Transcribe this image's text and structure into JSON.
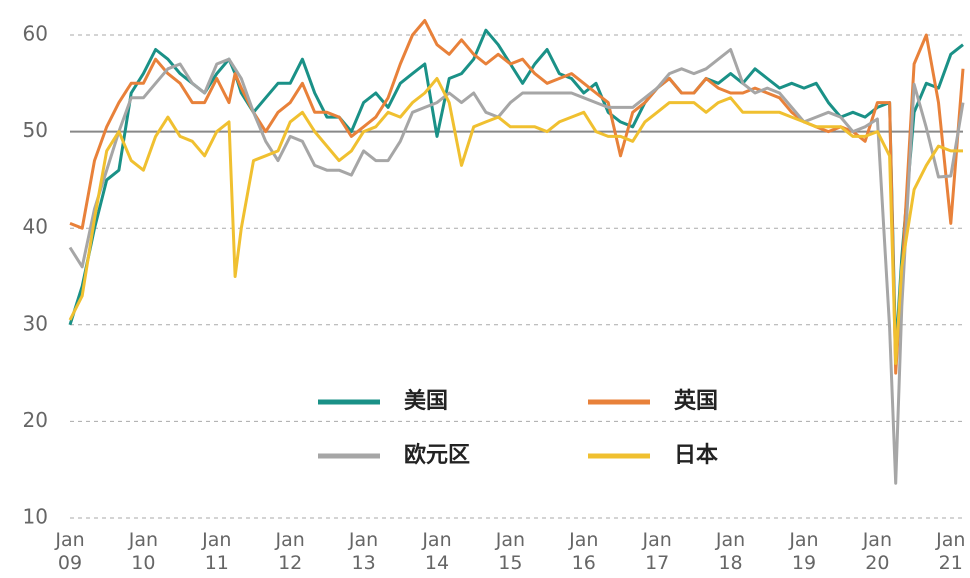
{
  "chart_data": {
    "type": "line",
    "x": [
      "2009-01",
      "2009-03",
      "2009-05",
      "2009-07",
      "2009-09",
      "2009-11",
      "2010-01",
      "2010-03",
      "2010-05",
      "2010-07",
      "2010-09",
      "2010-11",
      "2011-01",
      "2011-03",
      "2011-04",
      "2011-05",
      "2011-07",
      "2011-09",
      "2011-11",
      "2012-01",
      "2012-03",
      "2012-05",
      "2012-07",
      "2012-09",
      "2012-11",
      "2013-01",
      "2013-03",
      "2013-05",
      "2013-07",
      "2013-09",
      "2013-11",
      "2014-01",
      "2014-03",
      "2014-05",
      "2014-07",
      "2014-09",
      "2014-11",
      "2015-01",
      "2015-03",
      "2015-05",
      "2015-07",
      "2015-09",
      "2015-11",
      "2016-01",
      "2016-03",
      "2016-05",
      "2016-07",
      "2016-09",
      "2016-11",
      "2017-01",
      "2017-03",
      "2017-05",
      "2017-07",
      "2017-09",
      "2017-11",
      "2018-01",
      "2018-03",
      "2018-05",
      "2018-07",
      "2018-09",
      "2018-11",
      "2019-01",
      "2019-03",
      "2019-05",
      "2019-07",
      "2019-09",
      "2019-11",
      "2020-01",
      "2020-03",
      "2020-04",
      "2020-05",
      "2020-07",
      "2020-09",
      "2020-11",
      "2021-01",
      "2021-03"
    ],
    "series": [
      {
        "name": "美国",
        "color": "#1a9187",
        "values": [
          30,
          34,
          40,
          45,
          46,
          54,
          56,
          58.5,
          57.5,
          56,
          55,
          54,
          56,
          57.5,
          56,
          54,
          52,
          53.5,
          55,
          55,
          57.5,
          54,
          51.5,
          51.5,
          50,
          53,
          54,
          52.5,
          55,
          56,
          57,
          49.5,
          55.5,
          56,
          57.5,
          60.5,
          59,
          57,
          55,
          57,
          58.5,
          56,
          55.5,
          54,
          55,
          52,
          51,
          50.5,
          53,
          54.5,
          55.5,
          54,
          54,
          55.5,
          55,
          56,
          55,
          56.5,
          55.5,
          54.5,
          55,
          54.5,
          55,
          53,
          51.5,
          52,
          51.5,
          52.5,
          53,
          27,
          37,
          52,
          55,
          54.5,
          58,
          59
        ]
      },
      {
        "name": "英国",
        "color": "#e8813a",
        "values": [
          40.5,
          40,
          47,
          50.5,
          53,
          55,
          55,
          57.5,
          56,
          55,
          53,
          53,
          55.5,
          53,
          56,
          54.5,
          52,
          50,
          52,
          53,
          55,
          52,
          52,
          51.5,
          49.5,
          50.5,
          51.5,
          53.5,
          57,
          60,
          61.5,
          59,
          58,
          59.5,
          58,
          57,
          58,
          57,
          57.5,
          56,
          55,
          55.5,
          56,
          55,
          54,
          53,
          47.5,
          52,
          53,
          54.5,
          55.5,
          54,
          54,
          55.5,
          54.5,
          54,
          54,
          54.5,
          54,
          53.5,
          52,
          51,
          50.5,
          50,
          50.5,
          50,
          49,
          53,
          53,
          25,
          35,
          57,
          60,
          53,
          40.5,
          56.5
        ]
      },
      {
        "name": "欧元区",
        "color": "#a6a6a6",
        "values": [
          38,
          36,
          42,
          46,
          50,
          53.5,
          53.5,
          55,
          56.5,
          57,
          55,
          54,
          57,
          57.5,
          56.5,
          55.5,
          52,
          49,
          47,
          49.5,
          49,
          46.5,
          46,
          46,
          45.5,
          48,
          47,
          47,
          49,
          52,
          52.5,
          53,
          54,
          53,
          54,
          52,
          51.5,
          53,
          54,
          54,
          54,
          54,
          54,
          53.5,
          53,
          52.5,
          52.5,
          52.5,
          53.5,
          54.5,
          56,
          56.5,
          56,
          56.5,
          57.5,
          58.5,
          55,
          54,
          54.5,
          54,
          52.5,
          51,
          51.5,
          52,
          51.5,
          50,
          50.5,
          51.3,
          29.7,
          13.6,
          31.9,
          54.9,
          50.4,
          45.3,
          45.4,
          53
        ]
      },
      {
        "name": "日本",
        "color": "#f0c030",
        "values": [
          30.5,
          33,
          41,
          48,
          50,
          47,
          46,
          49.5,
          51.5,
          49.5,
          49,
          47.5,
          50,
          51,
          35,
          40,
          47,
          47.5,
          48,
          51,
          52,
          50,
          48.5,
          47,
          48,
          50,
          50.5,
          52,
          51.5,
          53,
          54,
          55.5,
          53,
          46.5,
          50.5,
          51,
          51.5,
          50.5,
          50.5,
          50.5,
          50,
          51,
          51.5,
          52,
          50,
          49.5,
          49.5,
          49,
          51,
          52,
          53,
          53,
          53,
          52,
          53,
          53.5,
          52,
          52,
          52,
          52,
          51.5,
          51,
          50.5,
          50.5,
          50.5,
          49.5,
          49.5,
          50,
          47.5,
          26,
          36,
          44,
          46.5,
          48.5,
          48,
          48
        ]
      }
    ],
    "xlim": [
      "2009-01",
      "2021-03"
    ],
    "xticks": [
      {
        "value": "2009-01",
        "label": "Jan\n09"
      },
      {
        "value": "2010-01",
        "label": "Jan\n10"
      },
      {
        "value": "2011-01",
        "label": "Jan\n11"
      },
      {
        "value": "2012-01",
        "label": "Jan\n12"
      },
      {
        "value": "2013-01",
        "label": "Jan\n13"
      },
      {
        "value": "2014-01",
        "label": "Jan\n14"
      },
      {
        "value": "2015-01",
        "label": "Jan\n15"
      },
      {
        "value": "2016-01",
        "label": "Jan\n16"
      },
      {
        "value": "2017-01",
        "label": "Jan\n17"
      },
      {
        "value": "2018-01",
        "label": "Jan\n18"
      },
      {
        "value": "2019-01",
        "label": "Jan\n19"
      },
      {
        "value": "2020-01",
        "label": "Jan\n20"
      },
      {
        "value": "2021-01",
        "label": "Jan\n21"
      }
    ],
    "ylim": [
      10,
      60
    ],
    "yticks": [
      10,
      20,
      30,
      40,
      50,
      60
    ],
    "grid": true,
    "reference_line": 50,
    "legend": "center"
  }
}
